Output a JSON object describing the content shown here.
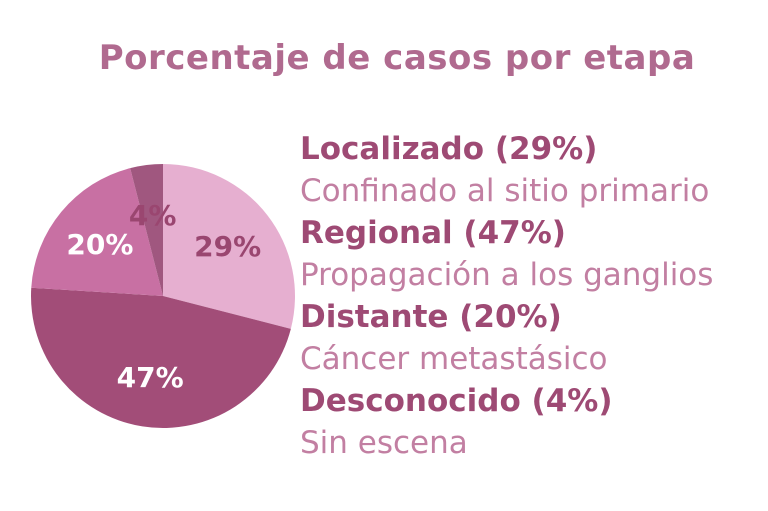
{
  "title": "Porcentaje de casos por etapa",
  "colors": {
    "localizado": "#e6afd0",
    "regional": "#a24d78",
    "distante": "#c870a3",
    "desconocido": "#a0577f",
    "label_dark": "#9a4670",
    "label_light": "#ffffff",
    "legend_head": "#9e4a74",
    "legend_desc": "#c27fa2"
  },
  "chart_data": {
    "type": "pie",
    "title": "Porcentaje de casos por etapa",
    "slices": [
      {
        "name": "Localizado",
        "value": 29,
        "label": "29%"
      },
      {
        "name": "Regional",
        "value": 47,
        "label": "47%"
      },
      {
        "name": "Distante",
        "value": 20,
        "label": "20%"
      },
      {
        "name": "Desconocido",
        "value": 4,
        "label": "4%"
      }
    ],
    "start_angle_deg": 0,
    "direction": "clockwise"
  },
  "legend": [
    {
      "heading": "Localizado (29%)",
      "description": "Confinado al sitio primario"
    },
    {
      "heading": "Regional (47%)",
      "description": "Propagación a los ganglios"
    },
    {
      "heading": "Distante (20%)",
      "description": "Cáncer metastásico"
    },
    {
      "heading": "Desconocido (4%)",
      "description": "Sin escena"
    }
  ]
}
